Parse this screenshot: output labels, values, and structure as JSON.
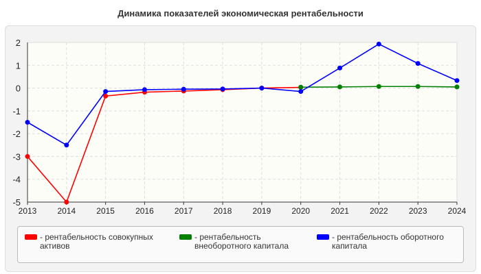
{
  "chart_data": {
    "type": "line",
    "title": "Динамика показателей экономическая рентабельности",
    "x": [
      2013,
      2014,
      2015,
      2016,
      2017,
      2018,
      2019,
      2020,
      2021,
      2022,
      2023,
      2024
    ],
    "ylim": [
      -5,
      2
    ],
    "yticks": [
      2,
      1,
      0,
      -1,
      -2,
      -3,
      -4,
      -5
    ],
    "grid": true,
    "legend_position": "bottom",
    "series": [
      {
        "name": "- рентабельность совокупных активов",
        "color": "#ff0000",
        "values": [
          -3,
          -5,
          -0.35,
          -0.18,
          -0.13,
          -0.07,
          0,
          0.03,
          null,
          null,
          null,
          null
        ]
      },
      {
        "name": "- рентабельность внеоборотного капитала",
        "color": "#008000",
        "values": [
          null,
          null,
          null,
          null,
          null,
          null,
          null,
          0.04,
          0.05,
          0.07,
          0.07,
          0.05
        ]
      },
      {
        "name": "- рентабельность оборотного капитала",
        "color": "#0000ff",
        "values": [
          -1.5,
          -2.5,
          -0.15,
          -0.07,
          -0.05,
          -0.04,
          0,
          -0.15,
          0.88,
          1.93,
          1.08,
          0.33
        ]
      }
    ]
  }
}
